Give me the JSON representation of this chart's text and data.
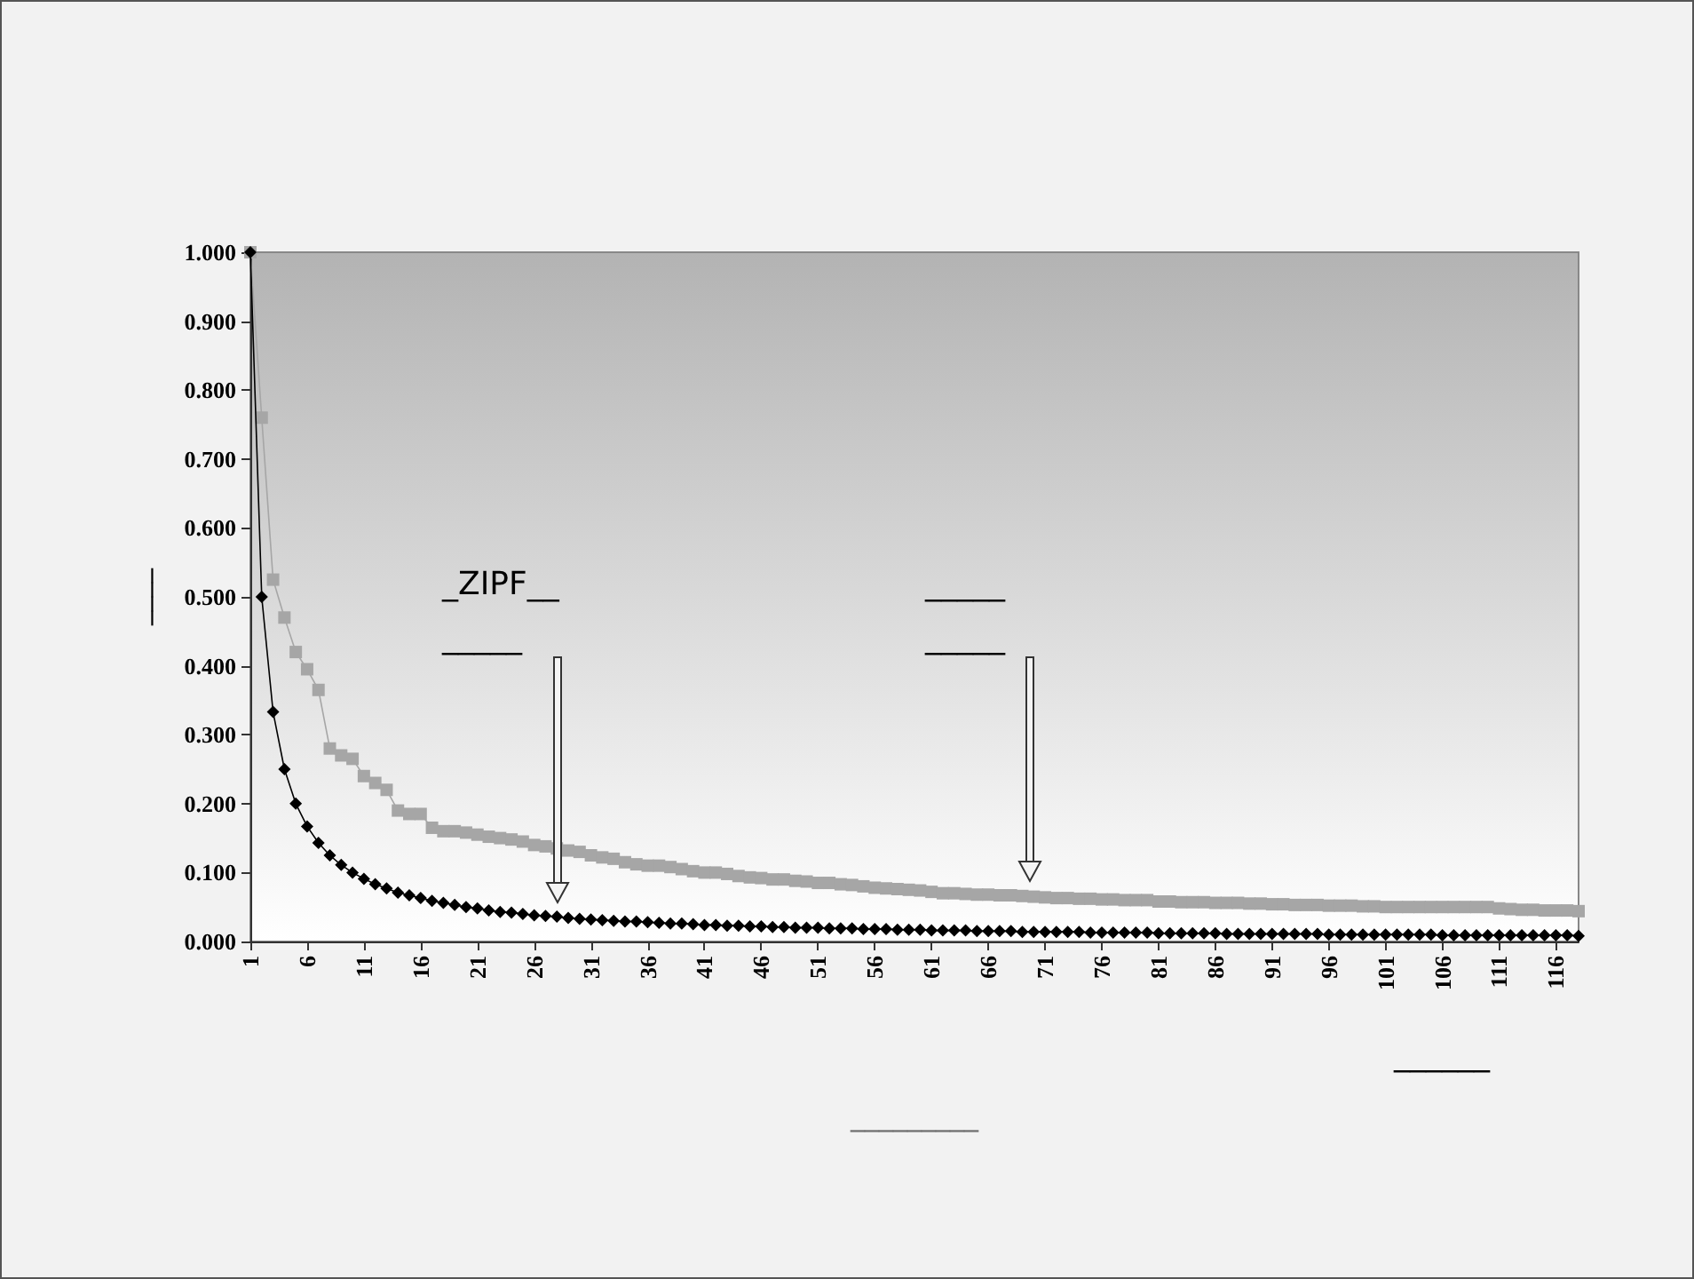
{
  "chart_data": {
    "type": "line",
    "xlabel": "_________",
    "ylabel": "____",
    "annotations": [
      "_ZIPF__\n_____",
      "_____\n_____",
      "______"
    ],
    "x": [
      1,
      2,
      3,
      4,
      5,
      6,
      7,
      8,
      9,
      10,
      11,
      12,
      13,
      14,
      15,
      16,
      17,
      18,
      19,
      20,
      21,
      22,
      23,
      24,
      25,
      26,
      27,
      28,
      29,
      30,
      31,
      32,
      33,
      34,
      35,
      36,
      37,
      38,
      39,
      40,
      41,
      42,
      43,
      44,
      45,
      46,
      47,
      48,
      49,
      50,
      51,
      52,
      53,
      54,
      55,
      56,
      57,
      58,
      59,
      60,
      61,
      62,
      63,
      64,
      65,
      66,
      67,
      68,
      69,
      70,
      71,
      72,
      73,
      74,
      75,
      76,
      77,
      78,
      79,
      80,
      81,
      82,
      83,
      84,
      85,
      86,
      87,
      88,
      89,
      90,
      91,
      92,
      93,
      94,
      95,
      96,
      97,
      98,
      99,
      100,
      101,
      102,
      103,
      104,
      105,
      106,
      107,
      108,
      109,
      110,
      111,
      112,
      113,
      114,
      115,
      116,
      117,
      118
    ],
    "series": [
      {
        "color": "#a6a6a6",
        "marker": "square",
        "values": [
          1.0,
          0.76,
          0.525,
          0.47,
          0.42,
          0.395,
          0.365,
          0.28,
          0.27,
          0.265,
          0.24,
          0.23,
          0.22,
          0.19,
          0.185,
          0.185,
          0.165,
          0.16,
          0.16,
          0.158,
          0.155,
          0.152,
          0.15,
          0.148,
          0.145,
          0.14,
          0.138,
          0.135,
          0.132,
          0.13,
          0.125,
          0.122,
          0.12,
          0.115,
          0.112,
          0.11,
          0.11,
          0.108,
          0.105,
          0.102,
          0.1,
          0.1,
          0.098,
          0.095,
          0.093,
          0.092,
          0.09,
          0.09,
          0.088,
          0.087,
          0.085,
          0.085,
          0.083,
          0.082,
          0.08,
          0.078,
          0.077,
          0.076,
          0.075,
          0.074,
          0.072,
          0.07,
          0.07,
          0.069,
          0.068,
          0.068,
          0.067,
          0.067,
          0.066,
          0.065,
          0.064,
          0.063,
          0.063,
          0.062,
          0.062,
          0.061,
          0.061,
          0.06,
          0.06,
          0.06,
          0.058,
          0.058,
          0.057,
          0.057,
          0.057,
          0.056,
          0.056,
          0.056,
          0.055,
          0.055,
          0.054,
          0.054,
          0.053,
          0.053,
          0.053,
          0.052,
          0.052,
          0.052,
          0.051,
          0.051,
          0.05,
          0.05,
          0.05,
          0.05,
          0.05,
          0.05,
          0.05,
          0.05,
          0.05,
          0.05,
          0.048,
          0.047,
          0.046,
          0.046,
          0.045,
          0.045,
          0.045,
          0.044
        ]
      },
      {
        "color": "#000000",
        "marker": "diamond",
        "values": [
          1.0,
          0.5,
          0.333,
          0.25,
          0.2,
          0.167,
          0.143,
          0.125,
          0.111,
          0.1,
          0.091,
          0.083,
          0.077,
          0.071,
          0.067,
          0.063,
          0.059,
          0.056,
          0.053,
          0.05,
          0.048,
          0.045,
          0.043,
          0.042,
          0.04,
          0.038,
          0.037,
          0.036,
          0.034,
          0.033,
          0.032,
          0.031,
          0.03,
          0.029,
          0.029,
          0.028,
          0.027,
          0.026,
          0.026,
          0.025,
          0.024,
          0.024,
          0.023,
          0.023,
          0.022,
          0.022,
          0.021,
          0.021,
          0.02,
          0.02,
          0.02,
          0.019,
          0.019,
          0.019,
          0.018,
          0.018,
          0.018,
          0.017,
          0.017,
          0.017,
          0.016,
          0.016,
          0.016,
          0.016,
          0.015,
          0.015,
          0.015,
          0.015,
          0.014,
          0.014,
          0.014,
          0.014,
          0.014,
          0.014,
          0.013,
          0.013,
          0.013,
          0.013,
          0.013,
          0.013,
          0.012,
          0.012,
          0.012,
          0.012,
          0.012,
          0.012,
          0.011,
          0.011,
          0.011,
          0.011,
          0.011,
          0.011,
          0.011,
          0.011,
          0.011,
          0.01,
          0.01,
          0.01,
          0.01,
          0.01,
          0.01,
          0.01,
          0.01,
          0.01,
          0.01,
          0.009,
          0.009,
          0.009,
          0.009,
          0.009,
          0.009,
          0.009,
          0.009,
          0.009,
          0.009,
          0.009,
          0.009,
          0.008
        ]
      }
    ],
    "xlim": [
      1,
      118
    ],
    "xticks": [
      1,
      6,
      11,
      16,
      21,
      26,
      31,
      36,
      41,
      46,
      51,
      56,
      61,
      66,
      71,
      76,
      81,
      86,
      91,
      96,
      101,
      106,
      111,
      116
    ],
    "ylim": [
      0,
      1
    ],
    "yticks": [
      {
        "value": 0,
        "label": "0.000"
      },
      {
        "value": 0.1,
        "label": "0.100"
      },
      {
        "value": 0.2,
        "label": "0.200"
      },
      {
        "value": 0.3,
        "label": "0.300"
      },
      {
        "value": 0.4,
        "label": "0.400"
      },
      {
        "value": 0.5,
        "label": "0.500"
      },
      {
        "value": 0.6,
        "label": "0.600"
      },
      {
        "value": 0.7,
        "label": "0.700"
      },
      {
        "value": 0.8,
        "label": "0.800"
      },
      {
        "value": 0.9,
        "label": "0.900"
      },
      {
        "value": 1.0,
        "label": "1.000"
      }
    ],
    "grid": false
  }
}
